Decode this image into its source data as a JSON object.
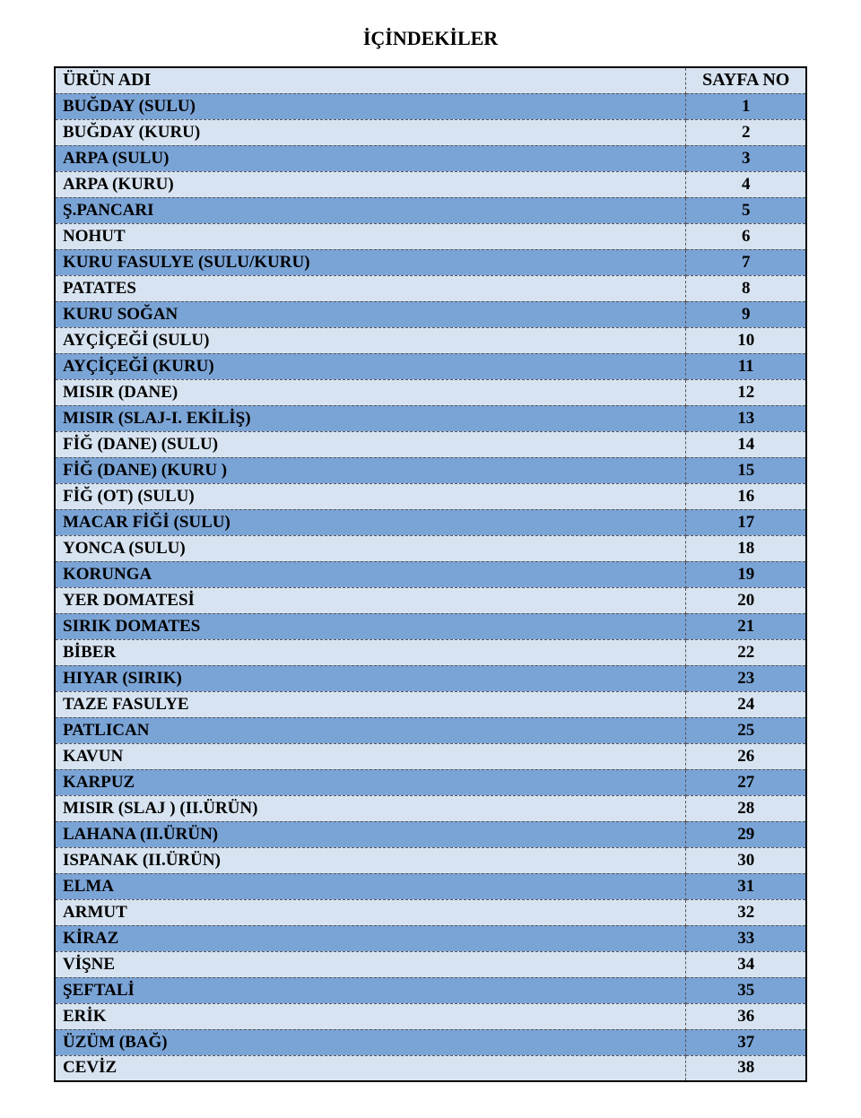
{
  "title": "İÇİNDEKİLER",
  "header": {
    "name": "ÜRÜN ADI",
    "page": "SAYFA NO"
  },
  "colors": {
    "even_row": "#d7e3f0",
    "odd_row": "#7ba4d6",
    "border": "#000000",
    "dash": "#555555",
    "text": "#000000",
    "background": "#ffffff"
  },
  "rows": [
    {
      "name": "BUĞDAY  (SULU)",
      "page": "1"
    },
    {
      "name": "BUĞDAY (KURU)",
      "page": "2"
    },
    {
      "name": "ARPA (SULU)",
      "page": "3"
    },
    {
      "name": "ARPA (KURU)",
      "page": "4"
    },
    {
      "name": "Ş.PANCARI",
      "page": "5"
    },
    {
      "name": "NOHUT",
      "page": "6"
    },
    {
      "name": "KURU FASULYE (SULU/KURU)",
      "page": "7"
    },
    {
      "name": "PATATES",
      "page": "8"
    },
    {
      "name": "KURU SOĞAN",
      "page": "9"
    },
    {
      "name": "AYÇİÇEĞİ (SULU)",
      "page": "10"
    },
    {
      "name": "AYÇİÇEĞİ (KURU)",
      "page": "11"
    },
    {
      "name": "MISIR (DANE)",
      "page": "12"
    },
    {
      "name": "MISIR (SLAJ-I. EKİLİŞ)",
      "page": "13"
    },
    {
      "name": "FİĞ (DANE) (SULU)",
      "page": "14"
    },
    {
      "name": "FİĞ (DANE) (KURU )",
      "page": "15"
    },
    {
      "name": "FİĞ (OT) (SULU)",
      "page": "16"
    },
    {
      "name": "MACAR FİĞİ  (SULU)",
      "page": "17"
    },
    {
      "name": "YONCA (SULU)",
      "page": "18"
    },
    {
      "name": "KORUNGA",
      "page": "19"
    },
    {
      "name": "YER DOMATESİ",
      "page": "20"
    },
    {
      "name": "SIRIK DOMATES",
      "page": "21"
    },
    {
      "name": "BİBER",
      "page": "22"
    },
    {
      "name": "HIYAR (SIRIK)",
      "page": "23"
    },
    {
      "name": "TAZE FASULYE",
      "page": "24"
    },
    {
      "name": "PATLICAN",
      "page": "25"
    },
    {
      "name": "KAVUN",
      "page": "26"
    },
    {
      "name": "KARPUZ",
      "page": "27"
    },
    {
      "name": "MISIR (SLAJ ) (II.ÜRÜN)",
      "page": "28"
    },
    {
      "name": "LAHANA (II.ÜRÜN)",
      "page": "29"
    },
    {
      "name": "ISPANAK (II.ÜRÜN)",
      "page": "30"
    },
    {
      "name": "ELMA",
      "page": "31"
    },
    {
      "name": "ARMUT",
      "page": "32"
    },
    {
      "name": "KİRAZ",
      "page": "33"
    },
    {
      "name": "VİŞNE",
      "page": "34"
    },
    {
      "name": "ŞEFTALİ",
      "page": "35"
    },
    {
      "name": "ERİK",
      "page": "36"
    },
    {
      "name": "ÜZÜM (BAĞ)",
      "page": "37"
    },
    {
      "name": "CEVİZ",
      "page": "38"
    }
  ]
}
